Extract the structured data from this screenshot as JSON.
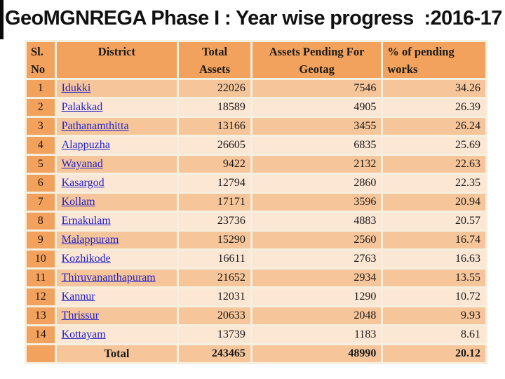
{
  "title": "GeoMGNREGA Phase I : Year wise progress  :2016-17",
  "colors": {
    "header_orange": "#f2a25c",
    "band_dark": "#f6c69a",
    "band_light": "#fce6d4",
    "grid_cream": "#f5efdf",
    "link_blue": "#2121cb",
    "text_black": "#1a1a1a"
  },
  "table": {
    "headers": {
      "sl_line1": "Sl.",
      "sl_line2": "No",
      "district": "District",
      "total_line1": "Total",
      "total_line2": "Assets",
      "pending_line1": "Assets Pending For",
      "pending_line2": "Geotag",
      "pct_line1": "% of pending",
      "pct_line2": "works"
    },
    "rows": [
      {
        "sl": "1",
        "district": "Idukki",
        "total_assets": "22026",
        "pending": "7546",
        "percent": "34.26"
      },
      {
        "sl": "2",
        "district": "Palakkad",
        "total_assets": "18589",
        "pending": "4905",
        "percent": "26.39"
      },
      {
        "sl": "3",
        "district": "Pathanamthitta",
        "total_assets": "13166",
        "pending": "3455",
        "percent": "26.24"
      },
      {
        "sl": "4",
        "district": "Alappuzha",
        "total_assets": "26605",
        "pending": "6835",
        "percent": "25.69"
      },
      {
        "sl": "5",
        "district": "Wayanad",
        "total_assets": "9422",
        "pending": "2132",
        "percent": "22.63"
      },
      {
        "sl": "6",
        "district": "Kasargod",
        "total_assets": "12794",
        "pending": "2860",
        "percent": "22.35"
      },
      {
        "sl": "7",
        "district": "Kollam",
        "total_assets": "17171",
        "pending": "3596",
        "percent": "20.94"
      },
      {
        "sl": "8",
        "district": "Ernakulam",
        "total_assets": "23736",
        "pending": "4883",
        "percent": "20.57"
      },
      {
        "sl": "9",
        "district": "Malappuram",
        "total_assets": "15290",
        "pending": "2560",
        "percent": "16.74"
      },
      {
        "sl": "10",
        "district": "Kozhikode",
        "total_assets": "16611",
        "pending": "2763",
        "percent": "16.63"
      },
      {
        "sl": "11",
        "district": "Thiruvananthapuram",
        "total_assets": "21652",
        "pending": "2934",
        "percent": "13.55"
      },
      {
        "sl": "12",
        "district": "Kannur",
        "total_assets": "12031",
        "pending": "1290",
        "percent": "10.72"
      },
      {
        "sl": "13",
        "district": "Thrissur",
        "total_assets": "20633",
        "pending": "2048",
        "percent": "9.93"
      },
      {
        "sl": "14",
        "district": "Kottayam",
        "total_assets": "13739",
        "pending": "1183",
        "percent": "8.61"
      }
    ],
    "total_row": {
      "label": "Total",
      "total_assets": "243465",
      "pending": "48990",
      "percent": "20.12"
    }
  }
}
